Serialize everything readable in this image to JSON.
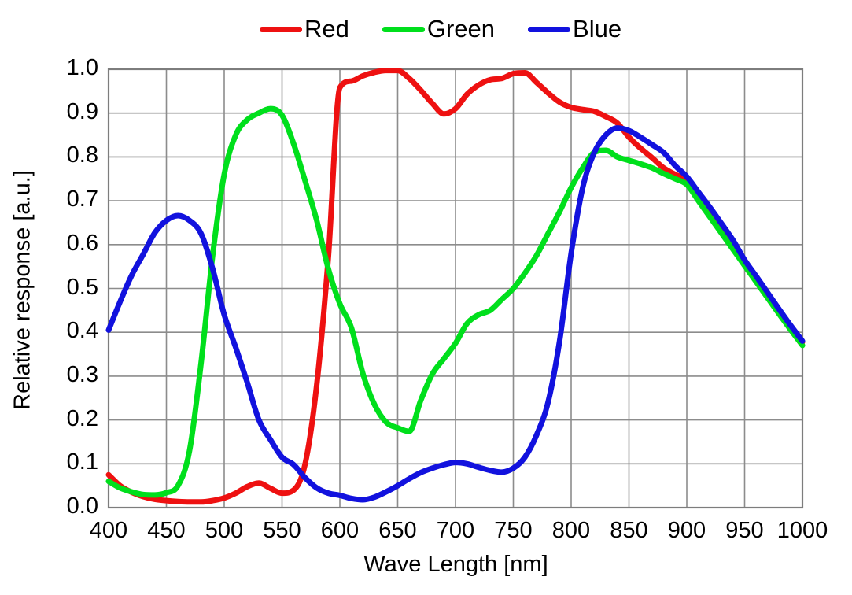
{
  "legend": {
    "items": [
      {
        "label": "Red",
        "color": "#ee1111"
      },
      {
        "label": "Green",
        "color": "#00df1c"
      },
      {
        "label": "Blue",
        "color": "#1212de"
      }
    ]
  },
  "colors": {
    "grid": "#8c8c8c",
    "frame": "#7d7d7d",
    "background": "#ffffff",
    "text": "#000000"
  },
  "chart_data": {
    "type": "line",
    "title": "",
    "xlabel": "Wave Length [nm]",
    "ylabel": "Relative response [a.u.]",
    "xlim": [
      400,
      1000
    ],
    "ylim": [
      0.0,
      1.0
    ],
    "grid": true,
    "legend_position": "top-center",
    "x_tick_labels": [
      "400",
      "450",
      "500",
      "550",
      "600",
      "650",
      "700",
      "750",
      "800",
      "850",
      "900",
      "950",
      "1000"
    ],
    "y_tick_labels": [
      "0.0",
      "0.1",
      "0.2",
      "0.3",
      "0.4",
      "0.5",
      "0.6",
      "0.7",
      "0.8",
      "0.9",
      "1.0"
    ],
    "x_start": 400,
    "x_step": 10,
    "series": [
      {
        "name": "Red",
        "color": "#ee1111",
        "values": [
          0.075,
          0.05,
          0.035,
          0.025,
          0.019,
          0.016,
          0.014,
          0.013,
          0.013,
          0.016,
          0.022,
          0.033,
          0.048,
          0.056,
          0.044,
          0.033,
          0.04,
          0.1,
          0.28,
          0.57,
          0.958,
          0.973,
          0.985,
          0.993,
          0.997,
          0.997,
          0.979,
          0.952,
          0.922,
          0.898,
          0.91,
          0.943,
          0.964,
          0.976,
          0.979,
          0.99,
          0.992,
          0.97,
          0.946,
          0.925,
          0.913,
          0.908,
          0.904,
          0.892,
          0.877,
          0.845,
          0.82,
          0.798,
          0.775,
          0.76,
          0.748,
          0.712,
          0.675,
          0.638,
          0.6,
          0.56,
          0.523,
          0.487,
          0.45,
          0.414,
          0.378
        ]
      },
      {
        "name": "Green",
        "color": "#00df1c",
        "values": [
          0.06,
          0.045,
          0.036,
          0.03,
          0.029,
          0.034,
          0.05,
          0.13,
          0.33,
          0.575,
          0.76,
          0.85,
          0.885,
          0.9,
          0.91,
          0.895,
          0.83,
          0.745,
          0.655,
          0.545,
          0.465,
          0.41,
          0.305,
          0.235,
          0.195,
          0.182,
          0.174,
          0.245,
          0.305,
          0.34,
          0.375,
          0.42,
          0.44,
          0.45,
          0.475,
          0.5,
          0.535,
          0.575,
          0.625,
          0.675,
          0.73,
          0.775,
          0.81,
          0.815,
          0.8,
          0.792,
          0.784,
          0.775,
          0.762,
          0.75,
          0.737,
          0.7,
          0.663,
          0.626,
          0.589,
          0.552,
          0.515,
          0.478,
          0.441,
          0.405,
          0.37
        ]
      },
      {
        "name": "Blue",
        "color": "#1212de",
        "values": [
          0.405,
          0.47,
          0.53,
          0.578,
          0.627,
          0.655,
          0.666,
          0.655,
          0.625,
          0.545,
          0.44,
          0.365,
          0.285,
          0.2,
          0.155,
          0.115,
          0.098,
          0.068,
          0.045,
          0.033,
          0.028,
          0.021,
          0.018,
          0.024,
          0.036,
          0.05,
          0.066,
          0.08,
          0.09,
          0.098,
          0.103,
          0.1,
          0.092,
          0.085,
          0.081,
          0.09,
          0.115,
          0.165,
          0.24,
          0.38,
          0.58,
          0.73,
          0.81,
          0.85,
          0.866,
          0.86,
          0.845,
          0.828,
          0.81,
          0.78,
          0.755,
          0.72,
          0.685,
          0.648,
          0.61,
          0.565,
          0.528,
          0.49,
          0.452,
          0.415,
          0.38
        ]
      }
    ]
  }
}
